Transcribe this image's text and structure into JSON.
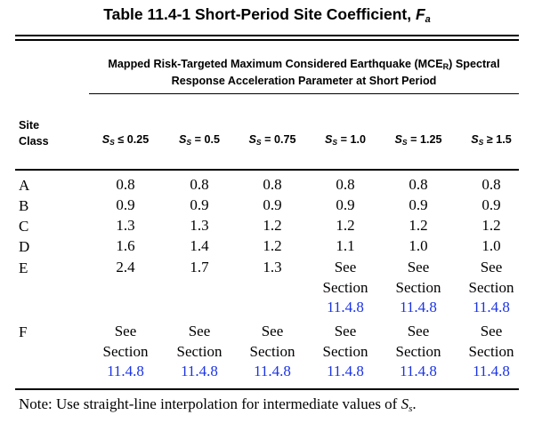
{
  "title": {
    "text": "Table 11.4-1 Short-Period Site Coefficient, ",
    "symbol": "F",
    "subscript": "a"
  },
  "spanner": {
    "line1_pre": "Mapped Risk-Targeted Maximum Considered Earthquake (MCE",
    "line1_sub": "R",
    "line1_post": ") Spectral",
    "line2": "Response Acceleration Parameter at Short Period"
  },
  "site_header": {
    "line1": "Site",
    "line2": "Class"
  },
  "columns": [
    {
      "sym": "S",
      "sub": "S",
      "op": " ≤ 0.25"
    },
    {
      "sym": "S",
      "sub": "S",
      "op": " = 0.5"
    },
    {
      "sym": "S",
      "sub": "S",
      "op": " = 0.75"
    },
    {
      "sym": "S",
      "sub": "S",
      "op": " = 1.0"
    },
    {
      "sym": "S",
      "sub": "S",
      "op": " = 1.25"
    },
    {
      "sym": "S",
      "sub": "S",
      "op": " ≥ 1.5"
    }
  ],
  "rows": [
    {
      "label": "A",
      "cells": [
        "0.8",
        "0.8",
        "0.8",
        "0.8",
        "0.8",
        "0.8"
      ]
    },
    {
      "label": "B",
      "cells": [
        "0.9",
        "0.9",
        "0.9",
        "0.9",
        "0.9",
        "0.9"
      ]
    },
    {
      "label": "C",
      "cells": [
        "1.3",
        "1.3",
        "1.2",
        "1.2",
        "1.2",
        "1.2"
      ]
    },
    {
      "label": "D",
      "cells": [
        "1.6",
        "1.4",
        "1.2",
        "1.1",
        "1.0",
        "1.0"
      ]
    },
    {
      "label": "E",
      "cells": [
        "2.4",
        "1.7",
        "1.3",
        "See|Section|11.4.8",
        "See|Section|11.4.8",
        "See|Section|11.4.8"
      ]
    },
    {
      "label": "F",
      "cells": [
        "See|Section|11.4.8",
        "See|Section|11.4.8",
        "See|Section|11.4.8",
        "See|Section|11.4.8",
        "See|Section|11.4.8",
        "See|Section|11.4.8"
      ]
    }
  ],
  "ref": {
    "see": "See",
    "section": "Section",
    "link": "11.4.8"
  },
  "note": {
    "pre": "Note: Use straight-line interpolation for intermediate values of ",
    "sym": "S",
    "sub": "s",
    "post": "."
  }
}
